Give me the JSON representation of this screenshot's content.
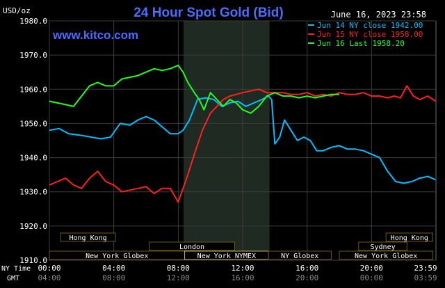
{
  "chart_data": {
    "type": "line",
    "title": "24 Hour Spot Gold (Bid)",
    "timestamp": "June 16, 2023 23:58",
    "brand": "www.kitco.com",
    "unit_label": "USD/oz",
    "ylim": [
      1910.0,
      1980.0
    ],
    "y_ticks": [
      "1980.0",
      "1970.0",
      "1960.0",
      "1950.0",
      "1940.0",
      "1930.0",
      "1920.0",
      "1910.0"
    ],
    "y_tick_values": [
      1980,
      1970,
      1960,
      1950,
      1940,
      1930,
      1920,
      1910
    ],
    "xlim": [
      0,
      24
    ],
    "x_ticks_ny": [
      "00:00",
      "04:00",
      "08:00",
      "12:00",
      "16:00",
      "20:00",
      "23:59"
    ],
    "x_ticks_gmt": [
      "04:00",
      "08:00",
      "12:00",
      "16:00",
      "20:00",
      "00:00",
      "03:59"
    ],
    "x_tick_hours": [
      0,
      4,
      8,
      12,
      16,
      20,
      23.983
    ],
    "x_axis_label_ny": "NY Time",
    "x_axis_label_gmt": "GMT",
    "shaded_session": [
      8.33,
      13.67
    ],
    "grid": true,
    "legend_position": "top-right",
    "sessions": [
      {
        "name": "Hong Kong",
        "start": 0.7,
        "end": 4.1,
        "row": 0,
        "color": "#6b5a10"
      },
      {
        "name": "London",
        "start": 6.2,
        "end": 11.5,
        "row": 1,
        "color": "#6b5a10"
      },
      {
        "name": "New York Globex",
        "start": 0.0,
        "end": 8.4,
        "row": 2,
        "color": "#6b5a10"
      },
      {
        "name": "New York NYMEX",
        "start": 8.4,
        "end": 13.6,
        "row": 2,
        "color": "#c8b450"
      },
      {
        "name": "NY Globex",
        "start": 13.6,
        "end": 17.5,
        "row": 2,
        "color": "#6b5a10"
      },
      {
        "name": "Hong Kong",
        "start": 20.9,
        "end": 23.8,
        "row": 0,
        "color": "#6b5a10"
      },
      {
        "name": "Sydney",
        "start": 19.2,
        "end": 22.2,
        "row": 1,
        "color": "#6b5a10"
      },
      {
        "name": "New York Globex",
        "start": 18.0,
        "end": 23.8,
        "row": 2,
        "color": "#6b5a10"
      }
    ],
    "series": [
      {
        "name": "Jun 14 NY close 1942.00",
        "color": "#00bfff",
        "x": [
          0,
          0.6,
          1.2,
          2,
          2.6,
          3.2,
          3.8,
          4.4,
          5,
          5.5,
          6,
          6.5,
          7,
          7.5,
          8,
          8.3,
          8.7,
          9.2,
          9.7,
          10.2,
          10.7,
          11.2,
          11.7,
          12.2,
          12.7,
          13.2,
          13.6,
          13.8,
          14.0,
          14.3,
          14.6,
          15.0,
          15.4,
          15.8,
          16.2,
          16.6,
          17.0,
          17.5,
          18.0,
          18.5,
          19.0,
          19.5,
          20.0,
          20.5,
          21.0,
          21.5,
          22.0,
          22.5,
          23.0,
          23.5,
          23.98
        ],
        "y": [
          1948,
          1948.5,
          1947,
          1946.5,
          1946,
          1945.5,
          1946,
          1950,
          1949.5,
          1951,
          1952,
          1951,
          1949,
          1947,
          1947,
          1948,
          1951,
          1957,
          1957.5,
          1957,
          1955,
          1956,
          1956.5,
          1955,
          1956,
          1957,
          1958,
          1957,
          1944,
          1946,
          1951,
          1948,
          1945,
          1946,
          1945,
          1942,
          1942,
          1943,
          1943.5,
          1942.5,
          1942.5,
          1942,
          1941,
          1940,
          1936,
          1933,
          1932.5,
          1933,
          1934,
          1934.5,
          1933.5
        ]
      },
      {
        "name": "Jun 15 NY close 1958.00",
        "color": "#ff2020",
        "x": [
          0,
          0.5,
          1.0,
          1.5,
          2.0,
          2.5,
          3.0,
          3.5,
          4.0,
          4.5,
          5.0,
          5.5,
          6.0,
          6.5,
          7.0,
          7.5,
          8.0,
          8.3,
          8.6,
          9.0,
          9.5,
          10.0,
          10.4,
          10.8,
          11.2,
          11.6,
          12.0,
          12.5,
          13.0,
          13.5,
          14.0,
          14.5,
          15.0,
          15.5,
          16.0,
          16.5,
          17.0,
          17.5,
          18.0,
          18.5,
          19.0,
          19.5,
          20.0,
          20.5,
          21.0,
          21.4,
          21.8,
          22.2,
          22.6,
          23.0,
          23.5,
          23.98
        ],
        "y": [
          1932,
          1933,
          1934,
          1932,
          1931,
          1934,
          1936,
          1933,
          1932,
          1930,
          1930.5,
          1931,
          1931.5,
          1929.5,
          1931,
          1931,
          1927,
          1931,
          1935,
          1941,
          1948,
          1953,
          1955,
          1957,
          1958,
          1958.5,
          1959,
          1959.5,
          1960,
          1959,
          1959,
          1959,
          1958.5,
          1958.5,
          1959,
          1958,
          1958.5,
          1958,
          1959,
          1958.5,
          1958.5,
          1959,
          1958,
          1958,
          1957.5,
          1958,
          1957.5,
          1961,
          1958,
          1957,
          1958,
          1956.5
        ]
      },
      {
        "name": "Jun 16 Last 1958.20",
        "color": "#20ff20",
        "x": [
          0,
          0.5,
          1.0,
          1.5,
          2.0,
          2.5,
          3.0,
          3.5,
          4.0,
          4.5,
          5.0,
          5.5,
          6.0,
          6.5,
          7.0,
          7.5,
          8.0,
          8.3,
          8.6,
          9.0,
          9.3,
          9.6,
          10.0,
          10.4,
          10.8,
          11.2,
          11.6,
          12.0,
          12.5,
          13.0,
          13.5,
          14.0,
          14.5,
          15.0,
          15.5,
          16.0,
          16.5,
          17.0,
          17.5,
          18.0
        ],
        "y": [
          1956.5,
          1956,
          1955.5,
          1955,
          1958,
          1961,
          1962,
          1961,
          1961,
          1963,
          1963.5,
          1964,
          1965,
          1966,
          1965.5,
          1966,
          1967,
          1965,
          1962,
          1959,
          1957,
          1954,
          1959,
          1957,
          1955,
          1957,
          1956,
          1954,
          1953,
          1955,
          1958,
          1959,
          1958,
          1958,
          1957.5,
          1958,
          1957.5,
          1958,
          1958.5,
          1958.5
        ]
      }
    ]
  }
}
